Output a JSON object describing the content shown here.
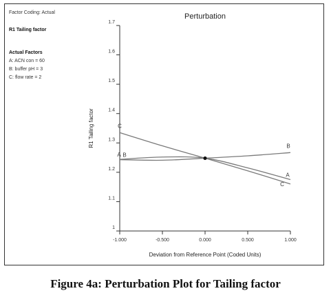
{
  "panel": {
    "factor_coding": "Factor Coding: Actual",
    "response_name": "R1 Tailing factor",
    "actual_factors_heading": "Actual Factors",
    "actual_factors": [
      "A: ACN con = 60",
      "B: buffer pH = 3",
      "C: flow rate = 2"
    ]
  },
  "caption": "Figure 4a: Perturbation Plot for Tailing factor",
  "chart_data": {
    "type": "line",
    "title": "Perturbation",
    "xlabel": "Deviation from Reference Point (Coded Units)",
    "ylabel": "R1 Tailing factor",
    "xlim": [
      -1.0,
      1.0
    ],
    "ylim": [
      1.0,
      1.7
    ],
    "x_ticks": [
      "-1.000",
      "-0.500",
      "0.000",
      "0.500",
      "1.000"
    ],
    "y_ticks": [
      "1",
      "1.1",
      "1.2",
      "1.3",
      "1.4",
      "1.5",
      "1.6",
      "1.7"
    ],
    "reference_point": {
      "x": 0.0,
      "y": 1.248
    },
    "series": [
      {
        "name": "A",
        "color": "#7a7a7a",
        "x": [
          -1.0,
          -0.5,
          0.0,
          0.5,
          1.0
        ],
        "y": [
          1.244,
          1.252,
          1.248,
          1.215,
          1.175
        ]
      },
      {
        "name": "B",
        "color": "#7a7a7a",
        "x": [
          -1.0,
          -0.5,
          0.0,
          0.5,
          1.0
        ],
        "y": [
          1.243,
          1.241,
          1.248,
          1.256,
          1.267
        ]
      },
      {
        "name": "C",
        "color": "#7a7a7a",
        "x": [
          -1.0,
          -0.5,
          0.0,
          0.5,
          1.0
        ],
        "y": [
          1.335,
          1.29,
          1.248,
          1.205,
          1.16
        ]
      }
    ],
    "grid": false,
    "legend": "none"
  }
}
